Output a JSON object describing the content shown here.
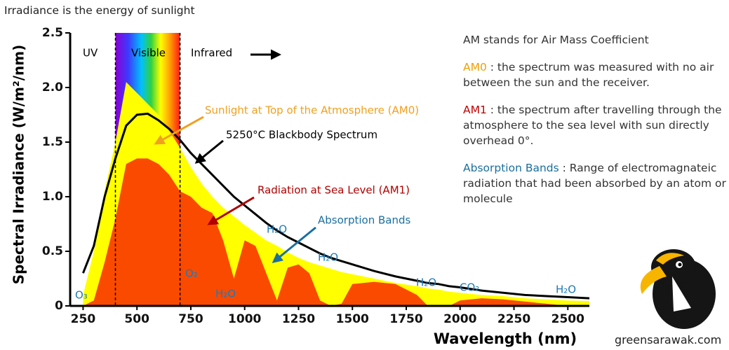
{
  "title": "Irradiance is the energy of sunlight",
  "chart_data": {
    "type": "area",
    "xlabel": "Wavelength (nm)",
    "ylabel": "Spectral Irradiance (W/m²/nm)",
    "xlim": [
      190,
      2600
    ],
    "ylim": [
      0,
      2.5
    ],
    "xticks": [
      250,
      500,
      750,
      1000,
      1250,
      1500,
      1750,
      2000,
      2250,
      2500
    ],
    "yticks": [
      0,
      0.5,
      {
        "value": 1,
        "label": "1.0"
      },
      1.5,
      {
        "value": 2,
        "label": "2.0"
      },
      2.5
    ],
    "band_edges": [
      400,
      700
    ],
    "x": [
      250,
      300,
      350,
      400,
      450,
      500,
      550,
      600,
      650,
      700,
      750,
      800,
      850,
      900,
      950,
      1000,
      1050,
      1100,
      1150,
      1200,
      1250,
      1300,
      1350,
      1400,
      1450,
      1500,
      1600,
      1700,
      1800,
      1850,
      1900,
      1950,
      2000,
      2100,
      2200,
      2300,
      2400,
      2500,
      2600
    ],
    "series": [
      {
        "name": "Sunlight at Top of the Atmosphere (AM0)",
        "style": "area",
        "color": "#ffff00",
        "values": [
          0.1,
          0.5,
          1.05,
          1.5,
          2.05,
          1.95,
          1.85,
          1.75,
          1.6,
          1.45,
          1.27,
          1.12,
          1.0,
          0.9,
          0.82,
          0.74,
          0.67,
          0.6,
          0.55,
          0.49,
          0.44,
          0.4,
          0.37,
          0.34,
          0.31,
          0.29,
          0.25,
          0.21,
          0.18,
          0.16,
          0.15,
          0.13,
          0.12,
          0.1,
          0.09,
          0.07,
          0.06,
          0.05,
          0.045
        ]
      },
      {
        "name": "Radiation at Sea Level (AM1)",
        "style": "area",
        "color": "#fa4a00",
        "values": [
          0,
          0.05,
          0.4,
          0.8,
          1.3,
          1.35,
          1.35,
          1.3,
          1.2,
          1.05,
          1.0,
          0.9,
          0.85,
          0.6,
          0.25,
          0.6,
          0.55,
          0.3,
          0.05,
          0.35,
          0.38,
          0.3,
          0.05,
          0,
          0.02,
          0.2,
          0.22,
          0.2,
          0.1,
          0,
          0,
          0,
          0.05,
          0.07,
          0.06,
          0.04,
          0.02,
          0,
          0
        ]
      },
      {
        "name": "5250°C Blackbody Spectrum",
        "style": "line",
        "color": "#000000",
        "values": [
          0.3,
          0.55,
          1.0,
          1.35,
          1.65,
          1.75,
          1.76,
          1.7,
          1.62,
          1.52,
          1.4,
          1.3,
          1.2,
          1.1,
          1.0,
          0.92,
          0.84,
          0.76,
          0.69,
          0.63,
          0.58,
          0.53,
          0.48,
          0.44,
          0.41,
          0.38,
          0.32,
          0.27,
          0.23,
          0.21,
          0.2,
          0.18,
          0.17,
          0.14,
          0.12,
          0.1,
          0.09,
          0.08,
          0.07
        ]
      }
    ],
    "annotations": [
      "UV",
      "Visible",
      "Infrared",
      "Absorption Bands",
      "H₂O",
      "H₂O",
      "H₂O",
      "H₂O",
      "H₂O",
      "O₂",
      "O₃",
      "CO₂"
    ]
  },
  "notes": {
    "heading": "AM stands for Air Mass Coefficient",
    "items": [
      {
        "term": "AM0",
        "text": " : the spectrum was measured with no air between the sun and the receiver."
      },
      {
        "term": "AM1",
        "text": " : the spectrum after travelling through the atmosphere to the sea level with sun directly overhead 0°."
      },
      {
        "term": "Absorption Bands",
        "text": " : Range of electromagnateic radiation that had been absorbed by an atom or molecule"
      }
    ]
  },
  "footer": "greensarawak.com"
}
